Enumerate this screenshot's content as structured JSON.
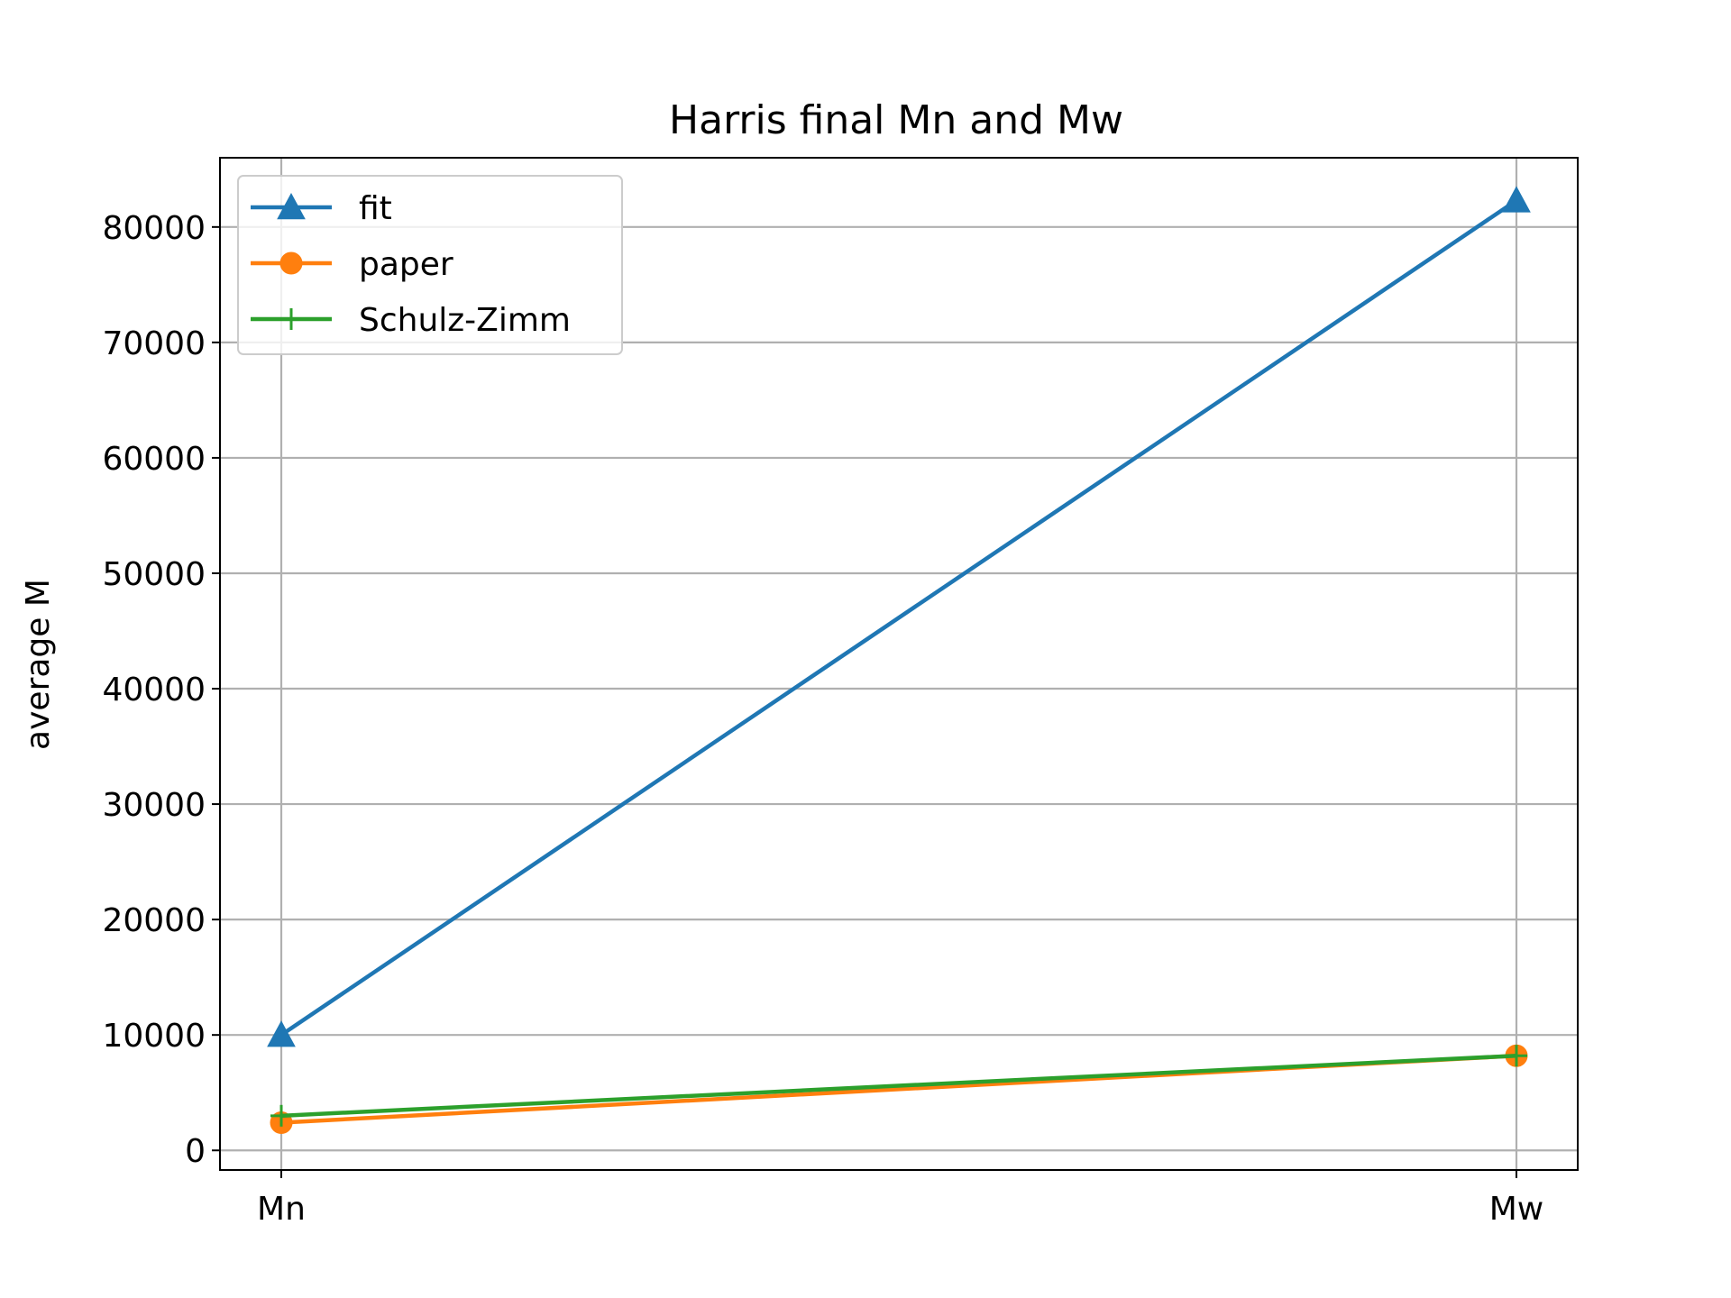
{
  "chart_data": {
    "type": "line",
    "title": "Harris final Mn and Mw",
    "xlabel": "",
    "ylabel": "average M",
    "categories": [
      "Mn",
      "Mw"
    ],
    "ylim": [
      -1700,
      86000
    ],
    "yticks": [
      0,
      10000,
      20000,
      30000,
      40000,
      50000,
      60000,
      70000,
      80000
    ],
    "yticks_labels": [
      "0",
      "10000",
      "20000",
      "30000",
      "40000",
      "50000",
      "60000",
      "70000",
      "80000"
    ],
    "grid": true,
    "legend_position": "upper-left",
    "series": [
      {
        "name": "fit",
        "values": [
          10000,
          82300
        ],
        "color": "#1f77b4",
        "marker": "triangle-up"
      },
      {
        "name": "paper",
        "values": [
          2400,
          8200
        ],
        "color": "#ff7f0e",
        "marker": "circle"
      },
      {
        "name": "Schulz-Zimm",
        "values": [
          3000,
          8200
        ],
        "color": "#2ca02c",
        "marker": "plus"
      }
    ]
  }
}
